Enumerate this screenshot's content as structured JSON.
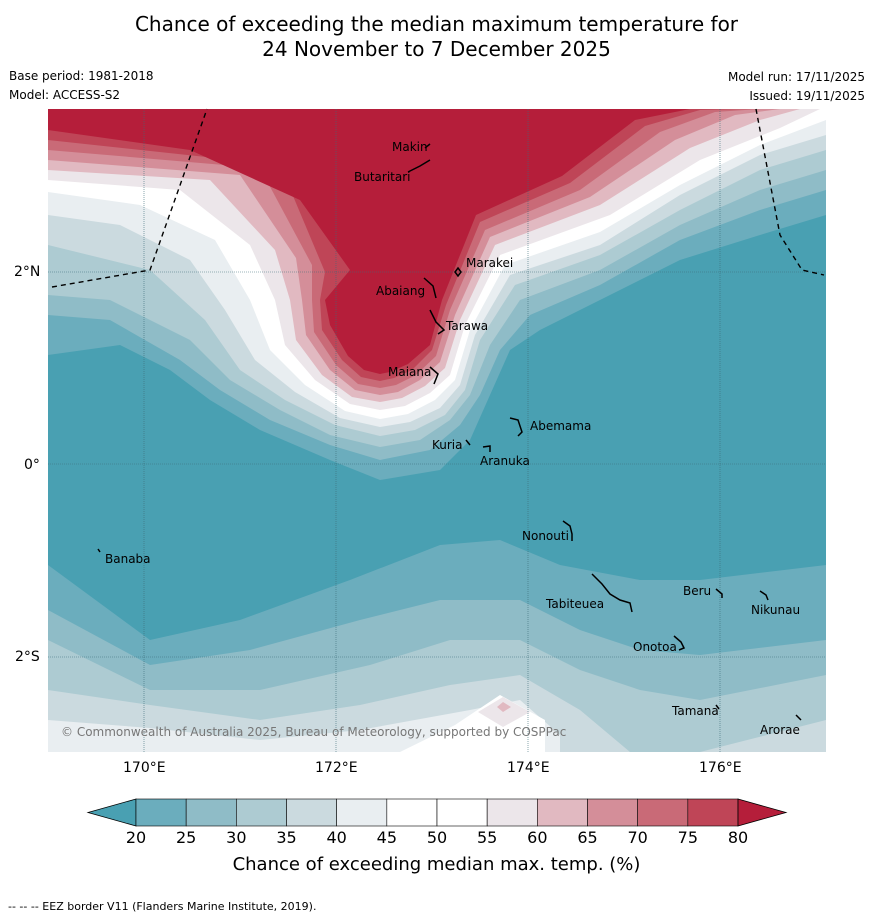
{
  "title": {
    "line1": "Chance of exceeding the median maximum temperature for",
    "line2": "24 November to 7 December 2025"
  },
  "meta": {
    "base_period": "Base period: 1981-2018",
    "model": "Model: ACCESS-S2",
    "model_run": "Model run: 17/11/2025",
    "issued": "Issued: 19/11/2025"
  },
  "axes": {
    "lat_labels": [
      "2°N",
      "0°",
      "2°S"
    ],
    "lon_labels": [
      "170°E",
      "172°E",
      "174°E",
      "176°E"
    ]
  },
  "places": [
    "Makin",
    "Butaritari",
    "Marakei",
    "Abaiang",
    "Tarawa",
    "Maiana",
    "Abemama",
    "Kuria",
    "Aranuka",
    "Nonouti",
    "Banaba",
    "Beru",
    "Nikunau",
    "Tabiteuea",
    "Onotoa",
    "Tamana",
    "Arorae"
  ],
  "copyright": "© Commonwealth of Australia 2025, Bureau of Meteorology, supported by COSPPac",
  "colorbar": {
    "ticks": [
      "20",
      "25",
      "30",
      "35",
      "40",
      "45",
      "50",
      "55",
      "60",
      "65",
      "70",
      "75",
      "80"
    ],
    "label": "Chance of exceeding median max. temp. (%)",
    "colors": [
      "#49a0b2",
      "#6badbd",
      "#8fbcc7",
      "#adcbd2",
      "#cbdadf",
      "#e9eef1",
      "#ffffff",
      "#ffffff",
      "#ece6ea",
      "#e1b9c1",
      "#d48e99",
      "#c96a77",
      "#bf4557",
      "#b51e3a"
    ]
  },
  "footer": "--  --  -- EEZ border V11 (Flanders Marine Institute, 2019)."
}
